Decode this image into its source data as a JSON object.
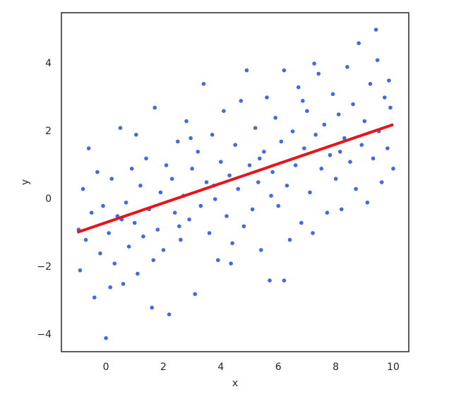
{
  "chart_data": {
    "type": "scatter",
    "xlabel": "x",
    "ylabel": "y",
    "xlim": [
      -1.55,
      10.54
    ],
    "ylim": [
      -4.5,
      5.5
    ],
    "xticks": [
      0,
      2,
      4,
      6,
      8,
      10
    ],
    "yticks": [
      {
        "value": -4,
        "label": "−4"
      },
      {
        "value": -2,
        "label": "−2"
      },
      0,
      2,
      4
    ],
    "color": "#4169e1",
    "x": [
      -0.9,
      -0.8,
      -0.7,
      -0.6,
      -0.5,
      -0.4,
      -0.3,
      -0.2,
      -0.1,
      0.0,
      0.1,
      0.2,
      0.3,
      0.4,
      0.5,
      0.6,
      0.7,
      0.8,
      0.9,
      1.0,
      1.1,
      1.2,
      1.3,
      1.4,
      1.5,
      1.6,
      1.7,
      1.8,
      1.9,
      2.0,
      2.1,
      2.2,
      2.3,
      2.4,
      2.5,
      2.6,
      2.7,
      2.8,
      2.9,
      3.0,
      3.1,
      3.2,
      3.3,
      3.4,
      3.5,
      3.6,
      3.7,
      3.8,
      3.9,
      4.0,
      4.1,
      4.2,
      4.3,
      4.4,
      4.5,
      4.6,
      4.7,
      4.8,
      4.9,
      5.0,
      5.1,
      5.2,
      5.3,
      5.4,
      5.5,
      5.6,
      5.7,
      5.8,
      5.9,
      6.0,
      6.1,
      6.2,
      6.3,
      6.4,
      6.5,
      6.6,
      6.7,
      6.8,
      6.9,
      7.0,
      7.1,
      7.2,
      7.3,
      7.4,
      7.5,
      7.6,
      7.7,
      7.8,
      7.9,
      8.0,
      8.1,
      8.2,
      8.3,
      8.4,
      8.5,
      8.6,
      8.7,
      8.8,
      8.9,
      9.0,
      9.1,
      9.2,
      9.3,
      9.4,
      9.5,
      9.6,
      9.7,
      9.8,
      9.9,
      10.0,
      -0.95,
      0.15,
      1.05,
      2.55,
      3.75,
      5.35,
      6.85,
      8.15,
      9.45,
      9.85,
      7.25,
      4.35,
      0.55,
      1.65,
      2.95,
      5.75,
      6.2
    ],
    "y": [
      -2.1,
      0.3,
      -1.2,
      1.5,
      -0.4,
      -2.9,
      0.8,
      -1.6,
      -0.2,
      -4.1,
      -1.0,
      0.6,
      -1.9,
      -0.5,
      2.1,
      -2.5,
      -0.1,
      -1.4,
      0.9,
      -0.7,
      -2.2,
      0.4,
      -1.1,
      1.2,
      -0.3,
      -3.2,
      2.7,
      -0.9,
      0.2,
      -1.5,
      1.0,
      -3.4,
      0.6,
      -0.4,
      1.7,
      -1.2,
      0.1,
      2.3,
      -0.6,
      0.9,
      -2.8,
      1.4,
      -0.2,
      3.4,
      0.5,
      -1.0,
      1.9,
      0.0,
      -1.8,
      1.1,
      2.6,
      -0.5,
      0.7,
      -1.3,
      1.6,
      0.3,
      2.9,
      -0.8,
      3.8,
      1.0,
      -0.3,
      2.1,
      0.5,
      -1.5,
      1.4,
      3.0,
      -2.4,
      0.8,
      2.4,
      -0.2,
      1.7,
      3.8,
      0.4,
      -1.2,
      2.0,
      1.0,
      3.3,
      -0.7,
      1.5,
      2.6,
      0.2,
      -1.0,
      1.9,
      3.7,
      0.9,
      2.2,
      -0.4,
      1.3,
      3.1,
      0.6,
      2.5,
      -0.3,
      1.8,
      3.9,
      1.1,
      2.8,
      0.3,
      4.6,
      1.6,
      2.3,
      -0.1,
      3.4,
      1.2,
      5.0,
      2.0,
      0.5,
      3.0,
      1.5,
      2.7,
      0.9,
      -0.9,
      -2.6,
      1.9,
      -0.8,
      0.4,
      1.2,
      2.9,
      1.4,
      4.1,
      3.5,
      4.0,
      -1.9,
      -0.6,
      -1.8,
      1.8,
      0.1,
      -2.4
    ],
    "line": {
      "x": [
        -1,
        10
      ],
      "y": [
        -0.98,
        2.2
      ],
      "color": "#e8141c"
    }
  }
}
